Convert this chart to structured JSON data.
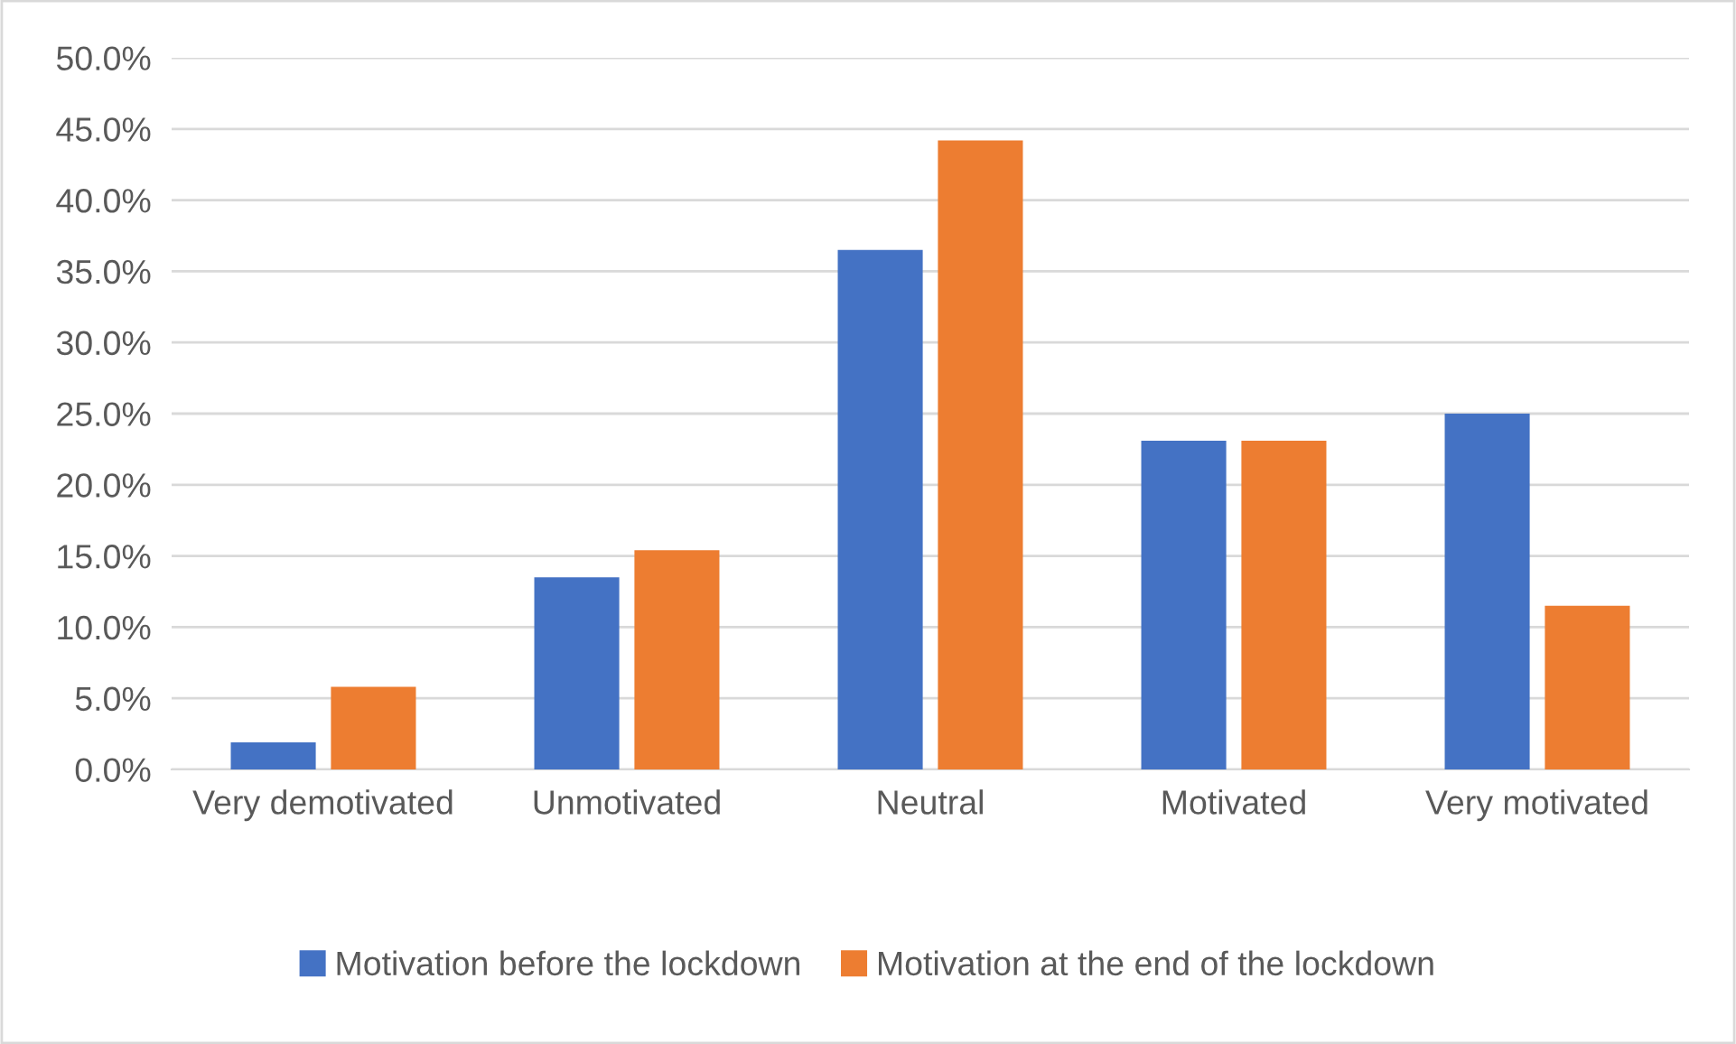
{
  "chart_data": {
    "type": "bar",
    "categories": [
      "Very demotivated",
      "Unmotivated",
      "Neutral",
      "Motivated",
      "Very motivated"
    ],
    "series": [
      {
        "name": "Motivation before the lockdown",
        "color": "#4472c4",
        "values": [
          1.9,
          13.5,
          36.5,
          23.1,
          25.0
        ]
      },
      {
        "name": "Motivation at the end of the lockdown",
        "color": "#ed7d31",
        "values": [
          5.8,
          15.4,
          44.2,
          23.1,
          11.5
        ]
      }
    ],
    "ylim": [
      0,
      50
    ],
    "yticks": [
      {
        "value": 0,
        "label": "0.0%"
      },
      {
        "value": 5,
        "label": "5.0%"
      },
      {
        "value": 10,
        "label": "10.0%"
      },
      {
        "value": 15,
        "label": "15.0%"
      },
      {
        "value": 20,
        "label": "20.0%"
      },
      {
        "value": 25,
        "label": "25.0%"
      },
      {
        "value": 30,
        "label": "30.0%"
      },
      {
        "value": 35,
        "label": "35.0%"
      },
      {
        "value": 40,
        "label": "40.0%"
      },
      {
        "value": 45,
        "label": "45.0%"
      },
      {
        "value": 50,
        "label": "50.0%"
      }
    ],
    "grid": "y",
    "legend": "bottom"
  }
}
